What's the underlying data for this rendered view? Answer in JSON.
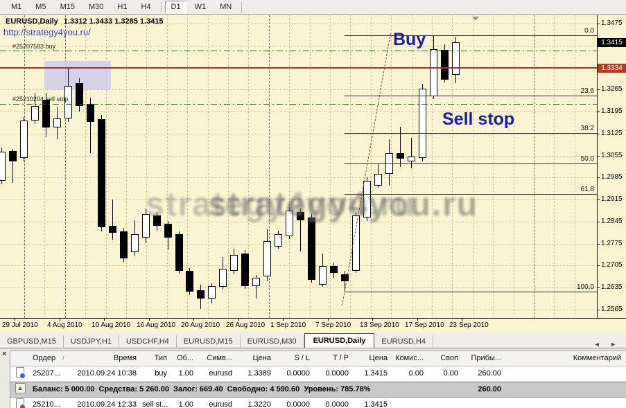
{
  "toolbar": {
    "buttons": [
      "M1",
      "M5",
      "M15",
      "M30",
      "H1",
      "H4",
      "D1",
      "W1",
      "MN"
    ],
    "active": "D1"
  },
  "chart": {
    "title_symbol": "EURUSD,Daily",
    "title_ohlc": "1.3312 1.3433 1.3285 1.3415",
    "url": "http://strategy4you.ru/",
    "buy_annotation": "Buy",
    "sell_annotation": "Sell stop",
    "watermark": "strategy4you.ru",
    "order_buy": {
      "label": "#25207583 buy",
      "price": 1.3389
    },
    "order_sell": {
      "label": "#25210204 sell stop",
      "price": 1.322
    },
    "red_line_price": 1.3334,
    "bid_badge": "1.3415",
    "red_badge": "1.3334",
    "bid_price": 1.3415,
    "fib_levels": [
      {
        "label": "0.0",
        "price": 1.3438
      },
      {
        "label": "23.6",
        "price": 1.3245
      },
      {
        "label": "38.2",
        "price": 1.3126
      },
      {
        "label": "50.0",
        "price": 1.303
      },
      {
        "label": "61.8",
        "price": 1.2934
      },
      {
        "label": "100.0",
        "price": 1.2622
      }
    ],
    "price_ticks": [
      "1.3475",
      "1.3405",
      "1.3335",
      "1.3265",
      "1.3195",
      "1.3125",
      "1.3055",
      "1.2985",
      "1.2915",
      "1.2845",
      "1.2775",
      "1.2705",
      "1.2635",
      "1.2565"
    ],
    "date_labels": [
      "29 Jul 2010",
      "4 Aug 2010",
      "10 Aug 2010",
      "16 Aug 2010",
      "20 Aug 2010",
      "26 Aug 2010",
      "1 Sep 2010",
      "7 Sep 2010",
      "13 Sep 2010",
      "17 Sep 2010",
      "23 Sep 2010"
    ]
  },
  "chart_data": {
    "type": "candlestick",
    "symbol": "EURUSD",
    "timeframe": "Daily",
    "ylim": [
      1.2565,
      1.3475
    ],
    "x_tick_labels": [
      "29 Jul 2010",
      "4 Aug 2010",
      "10 Aug 2010",
      "16 Aug 2010",
      "20 Aug 2010",
      "26 Aug 2010",
      "1 Sep 2010",
      "7 Sep 2010",
      "13 Sep 2010",
      "17 Sep 2010",
      "23 Sep 2010"
    ],
    "candles_ohlc": [
      [
        1.2975,
        1.3081,
        1.2964,
        1.3067
      ],
      [
        1.3069,
        1.3076,
        1.2968,
        1.3036
      ],
      [
        1.3047,
        1.3178,
        1.3036,
        1.3166
      ],
      [
        1.3166,
        1.3255,
        1.3155,
        1.3213
      ],
      [
        1.3233,
        1.3255,
        1.3114,
        1.3144
      ],
      [
        1.3144,
        1.3211,
        1.3107,
        1.3173
      ],
      [
        1.3173,
        1.3332,
        1.3162,
        1.3277
      ],
      [
        1.3286,
        1.3301,
        1.3195,
        1.3213
      ],
      [
        1.3219,
        1.3239,
        1.3063,
        1.3162
      ],
      [
        1.3171,
        1.3184,
        1.2814,
        1.2827
      ],
      [
        1.2832,
        1.2915,
        1.2787,
        1.281
      ],
      [
        1.2814,
        1.2825,
        1.2715,
        1.2728
      ],
      [
        1.2748,
        1.2849,
        1.2737,
        1.2805
      ],
      [
        1.2794,
        1.2887,
        1.2776,
        1.2869
      ],
      [
        1.2865,
        1.2876,
        1.2816,
        1.2832
      ],
      [
        1.2838,
        1.2847,
        1.2754,
        1.2794
      ],
      [
        1.2805,
        1.2814,
        1.2679,
        1.2688
      ],
      [
        1.2688,
        1.2697,
        1.2611,
        1.2622
      ],
      [
        1.2627,
        1.2644,
        1.2567,
        1.26
      ],
      [
        1.26,
        1.2648,
        1.2585,
        1.264
      ],
      [
        1.2638,
        1.2732,
        1.2629,
        1.2695
      ],
      [
        1.2688,
        1.2758,
        1.2677,
        1.2738
      ],
      [
        1.2743,
        1.2754,
        1.2631,
        1.264
      ],
      [
        1.264,
        1.2675,
        1.26,
        1.2666
      ],
      [
        1.267,
        1.2821,
        1.2655,
        1.2783
      ],
      [
        1.2765,
        1.2816,
        1.2758,
        1.2805
      ],
      [
        1.2798,
        1.2891,
        1.279,
        1.288
      ],
      [
        1.2876,
        1.2887,
        1.275,
        1.2849
      ],
      [
        1.2858,
        1.2869,
        1.2651,
        1.2659
      ],
      [
        1.2644,
        1.2743,
        1.2638,
        1.2704
      ],
      [
        1.2704,
        1.2715,
        1.2666,
        1.2682
      ],
      [
        1.2677,
        1.2688,
        1.2624,
        1.2655
      ],
      [
        1.2688,
        1.2876,
        1.2682,
        1.2864
      ],
      [
        1.2858,
        1.2985,
        1.2847,
        1.2974
      ],
      [
        1.2959,
        1.303,
        1.2953,
        1.2997
      ],
      [
        1.2997,
        1.3107,
        1.2959,
        1.3063
      ],
      [
        1.3063,
        1.3146,
        1.3019,
        1.3045
      ],
      [
        1.3036,
        1.3111,
        1.3014,
        1.3052
      ],
      [
        1.3047,
        1.3283,
        1.3036,
        1.3268
      ],
      [
        1.3244,
        1.3435,
        1.3235,
        1.3393
      ],
      [
        1.3391,
        1.3409,
        1.3288,
        1.3297
      ],
      [
        1.3312,
        1.3433,
        1.3285,
        1.3415
      ]
    ],
    "fib_levels": {
      "0.0": 1.3438,
      "23.6": 1.3245,
      "38.2": 1.3126,
      "50.0": 1.303,
      "61.8": 1.2934,
      "100.0": 1.2622
    },
    "legend_position": "none",
    "grid": true
  },
  "tabs": {
    "items": [
      "GBPUSD,M15",
      "USDJPY,H1",
      "USDCHF,H4",
      "EURUSD,M15",
      "EURUSD,M30",
      "EURUSD,Daily",
      "EURUSD,H4"
    ],
    "active": "EURUSD,Daily",
    "left_arrow": "◄",
    "right_arrow": "►"
  },
  "terminal": {
    "close_label": "×",
    "sort_indicator": "/",
    "columns": [
      "Ордер",
      "Время",
      "Тип",
      "Об...",
      "Симв...",
      "Цена",
      "S / L",
      "T / P",
      "Цена",
      "Комис...",
      "Своп",
      "Прибы...",
      "Комментарий"
    ],
    "rows": [
      {
        "icon": "order-buy",
        "order": "25207...",
        "time": "2010.09.24 10:38",
        "type": "buy",
        "volume": "1.00",
        "symbol": "eurusd",
        "price": "1.3389",
        "sl": "0.0000",
        "tp": "0.0000",
        "price2": "1.3415",
        "commission": "0.00",
        "swap": "0.00",
        "profit": "260.00",
        "comment": ""
      },
      {
        "icon": "order-sell",
        "order": "25210...",
        "time": "2010.09.24 12:33",
        "type": "sell st...",
        "volume": "1.00",
        "symbol": "eurusd",
        "price": "1.3220",
        "sl": "0.0000",
        "tp": "0.0000",
        "price2": "1.3415",
        "commission": "",
        "swap": "",
        "profit": "",
        "comment": ""
      }
    ],
    "balance": {
      "icon_glyph": "▲",
      "text": "Баланс: 5 000.00  Средства: 5 260.00  Залог: 669.40  Свободно: 4 590.60  Уровень: 785.78%",
      "profit": "260.00"
    }
  }
}
